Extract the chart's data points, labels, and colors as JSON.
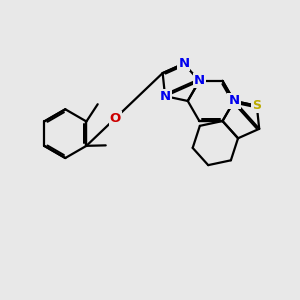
{
  "background_color": "#e8e8e8",
  "bond_width": 1.6,
  "figsize": [
    3.0,
    3.0
  ],
  "dpi": 100,
  "C": "#000000",
  "N": "#0000ee",
  "O": "#cc0000",
  "S": "#bbaa00",
  "font_size": 9.5
}
